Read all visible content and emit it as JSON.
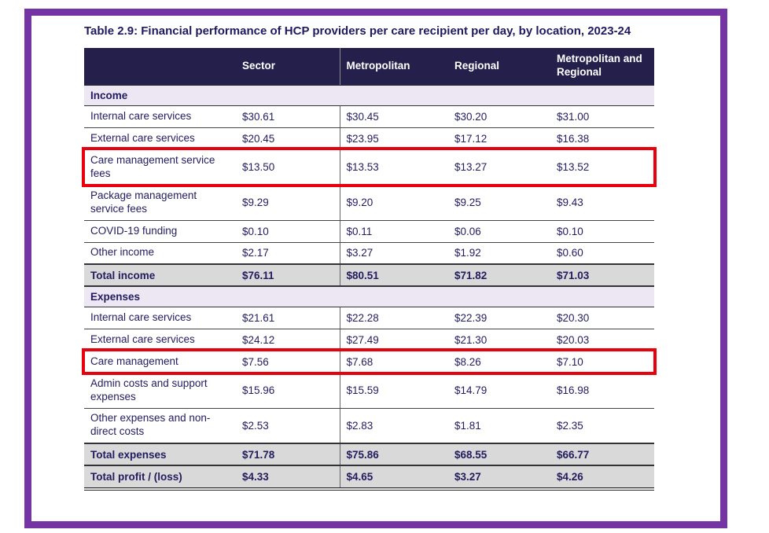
{
  "title": "Table 2.9: Financial performance of HCP providers per care recipient per day, by location, 2023-24",
  "colors": {
    "frame_border": "#7434A4",
    "header_background": "#251F4B",
    "header_text": "#FFFFFF",
    "section_background": "#EDE6F3",
    "total_background": "#D9D9D9",
    "body_text": "#221C5E",
    "highlight_box": "#E8000D"
  },
  "table": {
    "columns": [
      "",
      "Sector",
      "Metropolitan",
      "Regional",
      "Metropolitan and Regional"
    ],
    "rows": [
      {
        "type": "section",
        "label": "Income"
      },
      {
        "type": "data",
        "label": "Internal care services",
        "values": [
          "$30.61",
          "$30.45",
          "$30.20",
          "$31.00"
        ]
      },
      {
        "type": "data",
        "label": "External care services",
        "values": [
          "$20.45",
          "$23.95",
          "$17.12",
          "$16.38"
        ]
      },
      {
        "type": "data",
        "tall": true,
        "highlight": true,
        "label": "Care management service fees",
        "values": [
          "$13.50",
          "$13.53",
          "$13.27",
          "$13.52"
        ]
      },
      {
        "type": "data",
        "tall": true,
        "label": "Package management service fees",
        "values": [
          "$9.29",
          "$9.20",
          "$9.25",
          "$9.43"
        ]
      },
      {
        "type": "data",
        "label": "COVID-19 funding",
        "values": [
          "$0.10",
          "$0.11",
          "$0.06",
          "$0.10"
        ]
      },
      {
        "type": "data",
        "label": "Other income",
        "values": [
          "$2.17",
          "$3.27",
          "$1.92",
          "$0.60"
        ]
      },
      {
        "type": "total",
        "label": "Total income",
        "values": [
          "$76.11",
          "$80.51",
          "$71.82",
          "$71.03"
        ]
      },
      {
        "type": "section",
        "label": "Expenses"
      },
      {
        "type": "data",
        "label": "Internal care services",
        "values": [
          "$21.61",
          "$22.28",
          "$22.39",
          "$20.30"
        ]
      },
      {
        "type": "data",
        "label": "External care services",
        "values": [
          "$24.12",
          "$27.49",
          "$21.30",
          "$20.03"
        ]
      },
      {
        "type": "data",
        "highlight": true,
        "label": "Care management",
        "values": [
          "$7.56",
          "$7.68",
          "$8.26",
          "$7.10"
        ]
      },
      {
        "type": "data",
        "tall": true,
        "label": "Admin costs and support expenses",
        "values": [
          "$15.96",
          "$15.59",
          "$14.79",
          "$16.98"
        ]
      },
      {
        "type": "data",
        "tall": true,
        "label": "Other expenses and non-direct costs",
        "values": [
          "$2.53",
          "$2.83",
          "$1.81",
          "$2.35"
        ]
      },
      {
        "type": "total",
        "label": "Total expenses",
        "values": [
          "$71.78",
          "$75.86",
          "$68.55",
          "$66.77"
        ]
      },
      {
        "type": "total",
        "last": true,
        "label": "Total profit / (loss)",
        "values": [
          "$4.33",
          "$4.65",
          "$3.27",
          "$4.26"
        ]
      }
    ]
  }
}
